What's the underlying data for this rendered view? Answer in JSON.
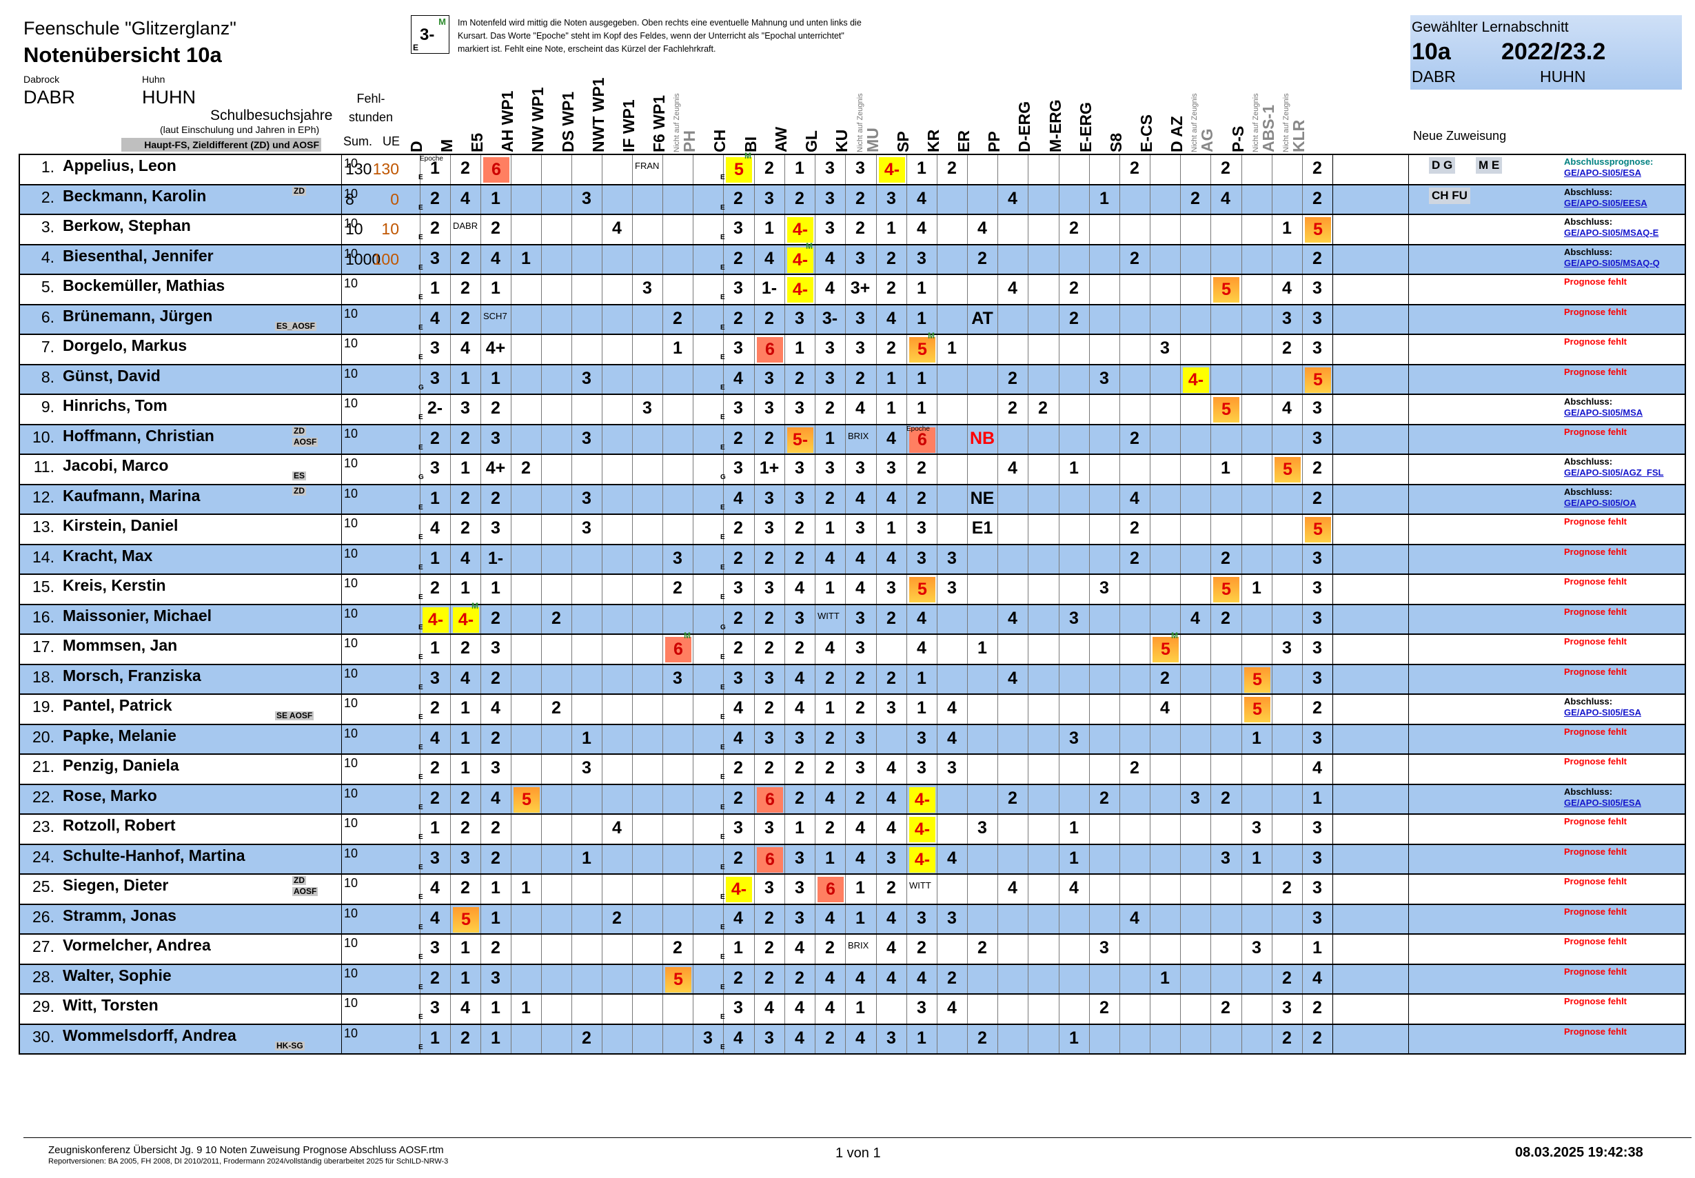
{
  "header": {
    "school": "Feenschule \"Glitzerglanz\"",
    "title": "Notenübersicht 10a",
    "teacher1_label": "Dabrock",
    "teacher1": "DABR",
    "teacher2_label": "Huhn",
    "teacher2": "HUHN",
    "legend_grade": "3-",
    "legend_m": "M",
    "legend_e": "E",
    "legend_text": "Im Notenfeld wird mittig die Noten ausgegeben. Oben rechts eine eventuelle Mahnung und unten links die Kursart. Das Worte \"Epoche\" steht im Kopf des Feldes, wenn der Unterricht als \"Epochal unterrichtet\" markiert ist. Fehlt eine Note, erscheint  das Kürzel der Fachlehrkraft.",
    "sel_label": "Gewählter Lernabschnitt",
    "sel_class": "10a",
    "sel_year": "2022/23.2",
    "sel_t1": "DABR",
    "sel_t2": "HUHN",
    "new_assign": "Neue Zuweisung",
    "school_years": "Schulbesuchsjahre",
    "school_years_sub": "(laut Einschulung und Jahren in EPh)",
    "haupt": "Haupt-FS, Zieldifferent (ZD) und AOSF",
    "fehl": "Fehl-\nstunden",
    "sum": "Sum.",
    "ue": "UE",
    "not_on_report": "Nicht auf Zeugnis"
  },
  "subjects": [
    "D",
    "M",
    "E5",
    "AH WP1",
    "NW WP1",
    "DS WP1",
    "NWT WP1",
    "IF WP1",
    "F6 WP1",
    "PH",
    "CH",
    "BI",
    "AW",
    "GL",
    "KU",
    "MU",
    "SP",
    "KR",
    "ER",
    "PP",
    "D-ERG",
    "M-ERG",
    "E-ERG",
    "S8",
    "E-CS",
    "D AZ",
    "AG",
    "P-S",
    "ABS-1",
    "KLR"
  ],
  "subjects_not_on_report": [
    "PH",
    "MU",
    "AG",
    "ABS-1",
    "KLR"
  ],
  "students": [
    {
      "n": "1.",
      "name": "Appelius, Leon",
      "sym": "",
      "yrs": "10",
      "sum": "130",
      "ue": "130",
      "g": [
        "1",
        "2",
        "6",
        "",
        "",
        "",
        "",
        "FRAN",
        "",
        "",
        "5",
        "2",
        "1",
        "3",
        "3",
        "4-",
        "1",
        "2",
        "",
        "",
        "",
        "",
        "",
        "2",
        "",
        "",
        "2",
        "",
        "",
        "2"
      ],
      "prog": [
        "Abschlussprognose:",
        "GE/APO-SI05/ESA"
      ],
      "teal": true,
      "chips": [
        "D G",
        "M E"
      ]
    },
    {
      "n": "2.",
      "name": "Beckmann, Karolin",
      "sym": "ZD",
      "yrs": "10",
      "sum": "8",
      "ue": "0",
      "g": [
        "2",
        "4",
        "1",
        "",
        "",
        "3",
        "",
        "",
        "",
        "",
        "2",
        "3",
        "2",
        "3",
        "2",
        "3",
        "4",
        "",
        "",
        "4",
        "",
        "",
        "1",
        "",
        "",
        "2",
        "4",
        "",
        "",
        "2"
      ],
      "prog": [
        "Abschluss:",
        "GE/APO-SI05/EESA"
      ],
      "chips": [
        "CH FU"
      ]
    },
    {
      "n": "3.",
      "name": "Berkow, Stephan",
      "sym": "",
      "yrs": "10",
      "sum": "10",
      "ue": "10",
      "g": [
        "2",
        "DABR",
        "2",
        "",
        "",
        "",
        "4",
        "",
        "",
        "",
        "3",
        "1",
        "4-",
        "3",
        "2",
        "1",
        "4",
        "",
        "4",
        "",
        "",
        "2",
        "",
        "",
        "",
        "",
        "",
        "",
        "1",
        "5"
      ],
      "prog": [
        "Abschluss:",
        "GE/APO-SI05/MSAQ-E"
      ]
    },
    {
      "n": "4.",
      "name": "Biesenthal, Jennifer",
      "sym": "",
      "yrs": "10",
      "sum": "1000",
      "ue": "100",
      "g": [
        "3",
        "2",
        "4",
        "1",
        "",
        "",
        "",
        "",
        "",
        "",
        "2",
        "4",
        "4-",
        "4",
        "3",
        "2",
        "3",
        "",
        "2",
        "",
        "",
        "",
        "",
        "2",
        "",
        "",
        "",
        "",
        "",
        "2"
      ],
      "prog": [
        "Abschluss:",
        "GE/APO-SI05/MSAQ-Q"
      ]
    },
    {
      "n": "5.",
      "name": "Bockemüller, Mathias",
      "sym": "",
      "yrs": "10",
      "sum": "",
      "ue": "",
      "g": [
        "1",
        "2",
        "1",
        "",
        "",
        "",
        "",
        "3",
        "",
        "",
        "3",
        "1-",
        "4-",
        "4",
        "3+",
        "2",
        "1",
        "",
        "",
        "4",
        "",
        "2",
        "",
        "",
        "",
        "",
        "5",
        "",
        "4",
        "3"
      ],
      "prog": [
        "Prognose fehlt"
      ]
    },
    {
      "n": "6.",
      "name": "Brünemann, Jürgen",
      "sym": "ES_AOSF",
      "yrs": "10",
      "sum": "",
      "ue": "",
      "g": [
        "4",
        "2",
        "SCH7",
        "",
        "",
        "",
        "",
        "",
        "2",
        "",
        "2",
        "2",
        "3",
        "3-",
        "3",
        "4",
        "1",
        "",
        "AT",
        "",
        "",
        "2",
        "",
        "",
        "",
        "",
        "",
        "",
        "3",
        "3"
      ],
      "prog": [
        "Prognose fehlt"
      ]
    },
    {
      "n": "7.",
      "name": "Dorgelo, Markus",
      "sym": "",
      "yrs": "10",
      "sum": "",
      "ue": "",
      "g": [
        "3",
        "4",
        "4+",
        "",
        "",
        "",
        "",
        "",
        "1",
        "",
        "3",
        "6",
        "1",
        "3",
        "3",
        "2",
        "5",
        "1",
        "",
        "",
        "",
        "",
        "",
        "",
        "3",
        "",
        "",
        "",
        "2",
        "3"
      ],
      "prog": [
        "Prognose fehlt"
      ]
    },
    {
      "n": "8.",
      "name": "Günst, David",
      "sym": "",
      "yrs": "10",
      "sum": "",
      "ue": "",
      "g": [
        "3",
        "1",
        "1",
        "",
        "",
        "3",
        "",
        "",
        "",
        "",
        "4",
        "3",
        "2",
        "3",
        "2",
        "1",
        "1",
        "",
        "",
        "2",
        "",
        "",
        "3",
        "",
        "",
        "4-",
        "",
        "",
        "",
        "5"
      ],
      "prog": [
        "Prognose fehlt"
      ]
    },
    {
      "n": "9.",
      "name": "Hinrichs, Tom",
      "sym": "",
      "yrs": "10",
      "sum": "",
      "ue": "",
      "g": [
        "2-",
        "3",
        "2",
        "",
        "",
        "",
        "",
        "3",
        "",
        "",
        "3",
        "3",
        "3",
        "2",
        "4",
        "1",
        "1",
        "",
        "",
        "2",
        "2",
        "",
        "",
        "",
        "",
        "",
        "5",
        "",
        "4",
        "3"
      ],
      "prog": [
        "Abschluss:",
        "GE/APO-SI05/MSA"
      ]
    },
    {
      "n": "10.",
      "name": "Hoffmann, Christian",
      "sym": "ZD\nAOSF",
      "yrs": "10",
      "sum": "",
      "ue": "",
      "g": [
        "2",
        "2",
        "3",
        "",
        "",
        "3",
        "",
        "",
        "",
        "",
        "2",
        "2",
        "5-",
        "1",
        "BRIX",
        "4",
        "6",
        "",
        "NB",
        "",
        "",
        "",
        "",
        "2",
        "",
        "",
        "",
        "",
        "",
        "3"
      ],
      "prog": [
        "Prognose fehlt"
      ]
    },
    {
      "n": "11.",
      "name": "Jacobi, Marco",
      "sym": "ES",
      "yrs": "10",
      "sum": "",
      "ue": "",
      "g": [
        "3",
        "1",
        "4+",
        "2",
        "",
        "",
        "",
        "",
        "",
        "",
        "3",
        "1+",
        "3",
        "3",
        "3",
        "3",
        "2",
        "",
        "",
        "4",
        "",
        "1",
        "",
        "",
        "",
        "",
        "1",
        "",
        "5",
        "2"
      ],
      "prog": [
        "Abschluss:",
        "GE/APO-SI05/AGZ_FSL"
      ]
    },
    {
      "n": "12.",
      "name": "Kaufmann, Marina",
      "sym": "ZD",
      "yrs": "10",
      "sum": "",
      "ue": "",
      "g": [
        "1",
        "2",
        "2",
        "",
        "",
        "3",
        "",
        "",
        "",
        "",
        "4",
        "3",
        "3",
        "2",
        "4",
        "4",
        "2",
        "",
        "NE",
        "",
        "",
        "",
        "",
        "4",
        "",
        "",
        "",
        "",
        "",
        "2"
      ],
      "prog": [
        "Abschluss:",
        "GE/APO-SI05/OA"
      ]
    },
    {
      "n": "13.",
      "name": "Kirstein, Daniel",
      "sym": "",
      "yrs": "10",
      "sum": "",
      "ue": "",
      "g": [
        "4",
        "2",
        "3",
        "",
        "",
        "3",
        "",
        "",
        "",
        "",
        "2",
        "3",
        "2",
        "1",
        "3",
        "1",
        "3",
        "",
        "E1",
        "",
        "",
        "",
        "",
        "2",
        "",
        "",
        "",
        "",
        "",
        "5"
      ],
      "prog": [
        "Prognose fehlt"
      ]
    },
    {
      "n": "14.",
      "name": "Kracht, Max",
      "sym": "",
      "yrs": "10",
      "sum": "",
      "ue": "",
      "g": [
        "1",
        "4",
        "1-",
        "",
        "",
        "",
        "",
        "",
        "3",
        "",
        "2",
        "2",
        "2",
        "4",
        "4",
        "4",
        "3",
        "3",
        "",
        "",
        "",
        "",
        "",
        "2",
        "",
        "",
        "2",
        "",
        "",
        "3"
      ],
      "prog": [
        "Prognose fehlt"
      ]
    },
    {
      "n": "15.",
      "name": "Kreis, Kerstin",
      "sym": "",
      "yrs": "10",
      "sum": "",
      "ue": "",
      "g": [
        "2",
        "1",
        "1",
        "",
        "",
        "",
        "",
        "",
        "2",
        "",
        "3",
        "3",
        "4",
        "1",
        "4",
        "3",
        "5",
        "3",
        "",
        "",
        "",
        "",
        "3",
        "",
        "",
        "",
        "5",
        "1",
        "",
        "3"
      ],
      "prog": [
        "Prognose fehlt"
      ]
    },
    {
      "n": "16.",
      "name": "Maissonier, Michael",
      "sym": "",
      "yrs": "10",
      "sum": "",
      "ue": "",
      "g": [
        "4-",
        "4-",
        "2",
        "",
        "2",
        "",
        "",
        "",
        "",
        "",
        "2",
        "2",
        "3",
        "WITT",
        "3",
        "2",
        "4",
        "",
        "",
        "4",
        "",
        "3",
        "",
        "",
        "",
        "4",
        "2",
        "",
        "",
        "3"
      ],
      "prog": [
        "Prognose fehlt"
      ]
    },
    {
      "n": "17.",
      "name": "Mommsen, Jan",
      "sym": "",
      "yrs": "10",
      "sum": "",
      "ue": "",
      "g": [
        "1",
        "2",
        "3",
        "",
        "",
        "",
        "",
        "",
        "6",
        "",
        "2",
        "2",
        "2",
        "4",
        "3",
        "",
        "4",
        "",
        "1",
        "",
        "",
        "",
        "",
        "",
        "5",
        "",
        "",
        "",
        "3",
        "3"
      ],
      "prog": [
        "Prognose fehlt"
      ]
    },
    {
      "n": "18.",
      "name": "Morsch, Franziska",
      "sym": "",
      "yrs": "10",
      "sum": "",
      "ue": "",
      "g": [
        "3",
        "4",
        "2",
        "",
        "",
        "",
        "",
        "",
        "3",
        "",
        "3",
        "3",
        "4",
        "2",
        "2",
        "2",
        "1",
        "",
        "",
        "4",
        "",
        "",
        "",
        "",
        "2",
        "",
        "",
        "5",
        "",
        "3"
      ],
      "prog": [
        "Prognose fehlt"
      ]
    },
    {
      "n": "19.",
      "name": "Pantel, Patrick",
      "sym": "SE AOSF",
      "yrs": "10",
      "sum": "",
      "ue": "",
      "g": [
        "2",
        "1",
        "4",
        "",
        "2",
        "",
        "",
        "",
        "",
        "",
        "4",
        "2",
        "4",
        "1",
        "2",
        "3",
        "1",
        "4",
        "",
        "",
        "",
        "",
        "",
        "",
        "4",
        "",
        "",
        "5",
        "",
        "2"
      ],
      "prog": [
        "Abschluss:",
        "GE/APO-SI05/ESA"
      ]
    },
    {
      "n": "20.",
      "name": "Papke, Melanie",
      "sym": "",
      "yrs": "10",
      "sum": "",
      "ue": "",
      "g": [
        "4",
        "1",
        "2",
        "",
        "",
        "1",
        "",
        "",
        "",
        "",
        "4",
        "3",
        "3",
        "2",
        "3",
        "",
        "3",
        "4",
        "",
        "",
        "",
        "3",
        "",
        "",
        "",
        "",
        "",
        "1",
        "",
        "3"
      ],
      "prog": [
        "Prognose fehlt"
      ]
    },
    {
      "n": "21.",
      "name": "Penzig, Daniela",
      "sym": "",
      "yrs": "10",
      "sum": "",
      "ue": "",
      "g": [
        "2",
        "1",
        "3",
        "",
        "",
        "3",
        "",
        "",
        "",
        "",
        "2",
        "2",
        "2",
        "2",
        "3",
        "4",
        "3",
        "3",
        "",
        "",
        "",
        "",
        "",
        "2",
        "",
        "",
        "",
        "",
        "",
        "4"
      ],
      "prog": [
        "Prognose fehlt"
      ]
    },
    {
      "n": "22.",
      "name": "Rose, Marko",
      "sym": "",
      "yrs": "10",
      "sum": "",
      "ue": "",
      "g": [
        "2",
        "2",
        "4",
        "5",
        "",
        "",
        "",
        "",
        "",
        "",
        "2",
        "6",
        "2",
        "4",
        "2",
        "4",
        "4-",
        "",
        "",
        "2",
        "",
        "",
        "2",
        "",
        "",
        "3",
        "2",
        "",
        "",
        "1"
      ],
      "prog": [
        "Abschluss:",
        "GE/APO-SI05/ESA"
      ]
    },
    {
      "n": "23.",
      "name": "Rotzoll, Robert",
      "sym": "",
      "yrs": "10",
      "sum": "",
      "ue": "",
      "g": [
        "1",
        "2",
        "2",
        "",
        "",
        "",
        "4",
        "",
        "",
        "",
        "3",
        "3",
        "1",
        "2",
        "4",
        "4",
        "4-",
        "",
        "3",
        "",
        "",
        "1",
        "",
        "",
        "",
        "",
        "",
        "3",
        "",
        "3"
      ],
      "prog": [
        "Prognose fehlt"
      ]
    },
    {
      "n": "24.",
      "name": "Schulte-Hanhof, Martina",
      "sym": "",
      "yrs": "10",
      "sum": "",
      "ue": "",
      "g": [
        "3",
        "3",
        "2",
        "",
        "",
        "1",
        "",
        "",
        "",
        "",
        "2",
        "6",
        "3",
        "1",
        "4",
        "3",
        "4-",
        "4",
        "",
        "",
        "",
        "1",
        "",
        "",
        "",
        "",
        "3",
        "1",
        "",
        "3"
      ],
      "prog": [
        "Prognose fehlt"
      ]
    },
    {
      "n": "25.",
      "name": "Siegen, Dieter",
      "sym": "ZD\nAOSF",
      "yrs": "10",
      "sum": "",
      "ue": "",
      "g": [
        "4",
        "2",
        "1",
        "1",
        "",
        "",
        "",
        "",
        "",
        "",
        "4-",
        "3",
        "3",
        "6",
        "1",
        "2",
        "WITT",
        "",
        "",
        "4",
        "",
        "4",
        "",
        "",
        "",
        "",
        "",
        "",
        "2",
        "3"
      ],
      "prog": [
        "Prognose fehlt"
      ]
    },
    {
      "n": "26.",
      "name": "Stramm, Jonas",
      "sym": "",
      "yrs": "10",
      "sum": "",
      "ue": "",
      "g": [
        "4",
        "5",
        "1",
        "",
        "",
        "",
        "2",
        "",
        "",
        "",
        "4",
        "2",
        "3",
        "4",
        "1",
        "4",
        "3",
        "3",
        "",
        "",
        "",
        "",
        "",
        "4",
        "",
        "",
        "",
        "",
        "",
        "3"
      ],
      "prog": [
        "Prognose fehlt"
      ]
    },
    {
      "n": "27.",
      "name": "Vormelcher, Andrea",
      "sym": "",
      "yrs": "10",
      "sum": "",
      "ue": "",
      "g": [
        "3",
        "1",
        "2",
        "",
        "",
        "",
        "",
        "",
        "2",
        "",
        "1",
        "2",
        "4",
        "2",
        "BRIX",
        "4",
        "2",
        "",
        "2",
        "",
        "",
        "",
        "3",
        "",
        "",
        "",
        "",
        "3",
        "",
        "1"
      ],
      "prog": [
        "Prognose fehlt"
      ]
    },
    {
      "n": "28.",
      "name": "Walter, Sophie",
      "sym": "",
      "yrs": "10",
      "sum": "",
      "ue": "",
      "g": [
        "2",
        "1",
        "3",
        "",
        "",
        "",
        "",
        "",
        "5",
        "",
        "2",
        "2",
        "2",
        "4",
        "4",
        "4",
        "4",
        "2",
        "",
        "",
        "",
        "",
        "",
        "",
        "1",
        "",
        "",
        "",
        "2",
        "4"
      ],
      "prog": [
        "Prognose fehlt"
      ]
    },
    {
      "n": "29.",
      "name": "Witt, Torsten",
      "sym": "",
      "yrs": "10",
      "sum": "",
      "ue": "",
      "g": [
        "3",
        "4",
        "1",
        "1",
        "",
        "",
        "",
        "",
        "",
        "",
        "3",
        "4",
        "4",
        "4",
        "1",
        "",
        "3",
        "4",
        "",
        "",
        "",
        "",
        "2",
        "",
        "",
        "",
        "2",
        "",
        "3",
        "2"
      ],
      "prog": [
        "Prognose fehlt"
      ]
    },
    {
      "n": "30.",
      "name": "Wommelsdorff, Andrea",
      "sym": "HK-SG",
      "yrs": "10",
      "sum": "",
      "ue": "",
      "g": [
        "1",
        "2",
        "1",
        "",
        "",
        "2",
        "",
        "",
        "",
        "3",
        "4",
        "3",
        "4",
        "2",
        "4",
        "3",
        "1",
        "",
        "2",
        "",
        "",
        "1",
        "",
        "",
        "",
        "",
        "",
        "",
        "2",
        "2"
      ],
      "prog": [
        "Prognose fehlt"
      ]
    }
  ],
  "footer": {
    "report": "Zeugniskonferenz Übersicht Jg. 9 10 Noten Zuweisung Prognose Abschluss AOSF.rtm",
    "versions": "Reportversionen: BA 2005, FH 2008, DI 2010/2011, Frodermann 2024/vollständig überarbeitet 2025 für SchILD-NRW-3",
    "page": "1 von 1",
    "date": "08.03.2025 19:42:38"
  }
}
